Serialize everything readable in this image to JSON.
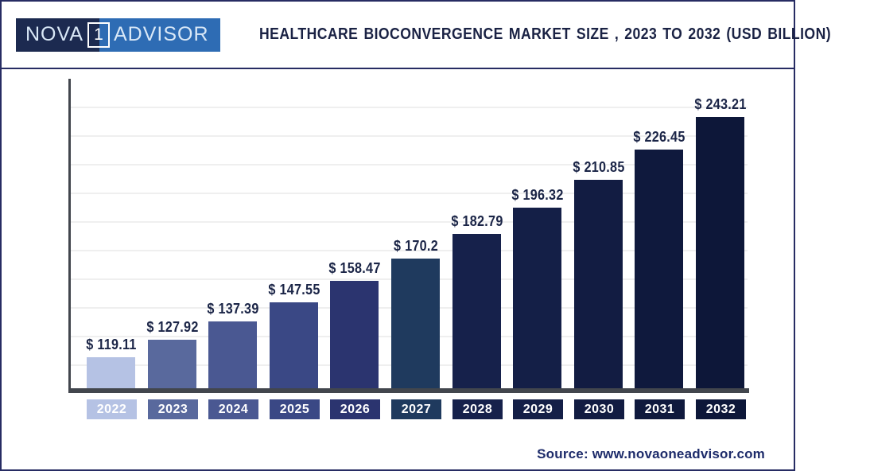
{
  "header": {
    "logo": {
      "part1": "NOVA",
      "part2": "1",
      "part3": "ADVISOR"
    },
    "title": "HEALTHCARE BIOCONVERGENCE MARKET SIZE , 2023 TO 2032 (USD BILLION)"
  },
  "chart_data": {
    "type": "bar",
    "title": "Healthcare Bioconvergence Market Size , 2023 to 2032 (USD Billion)",
    "unit": "USD Billion",
    "categories": [
      "2022",
      "2023",
      "2024",
      "2025",
      "2026",
      "2027",
      "2028",
      "2029",
      "2030",
      "2031",
      "2032"
    ],
    "values": [
      119.11,
      127.92,
      137.39,
      147.55,
      158.47,
      170.2,
      182.79,
      196.32,
      210.85,
      226.45,
      243.21
    ],
    "value_labels": [
      "$ 119.11",
      "$ 127.92",
      "$ 137.39",
      "$ 147.55",
      "$ 158.47",
      "$ 170.2",
      "$ 182.79",
      "$ 196.32",
      "$ 210.85",
      "$ 226.45",
      "$ 243.21"
    ],
    "bar_colors": [
      "#b5c2e4",
      "#59699d",
      "#4a5892",
      "#3a4885",
      "#2b346f",
      "#1f3a5e",
      "#16214b",
      "#141f47",
      "#121c42",
      "#0f193d",
      "#0d1739"
    ],
    "ylim": [
      103,
      265
    ],
    "grid": true,
    "legend": false,
    "xlabel": "",
    "ylabel": ""
  },
  "footer": {
    "source": "Source: www.novaoneadvisor.com"
  }
}
